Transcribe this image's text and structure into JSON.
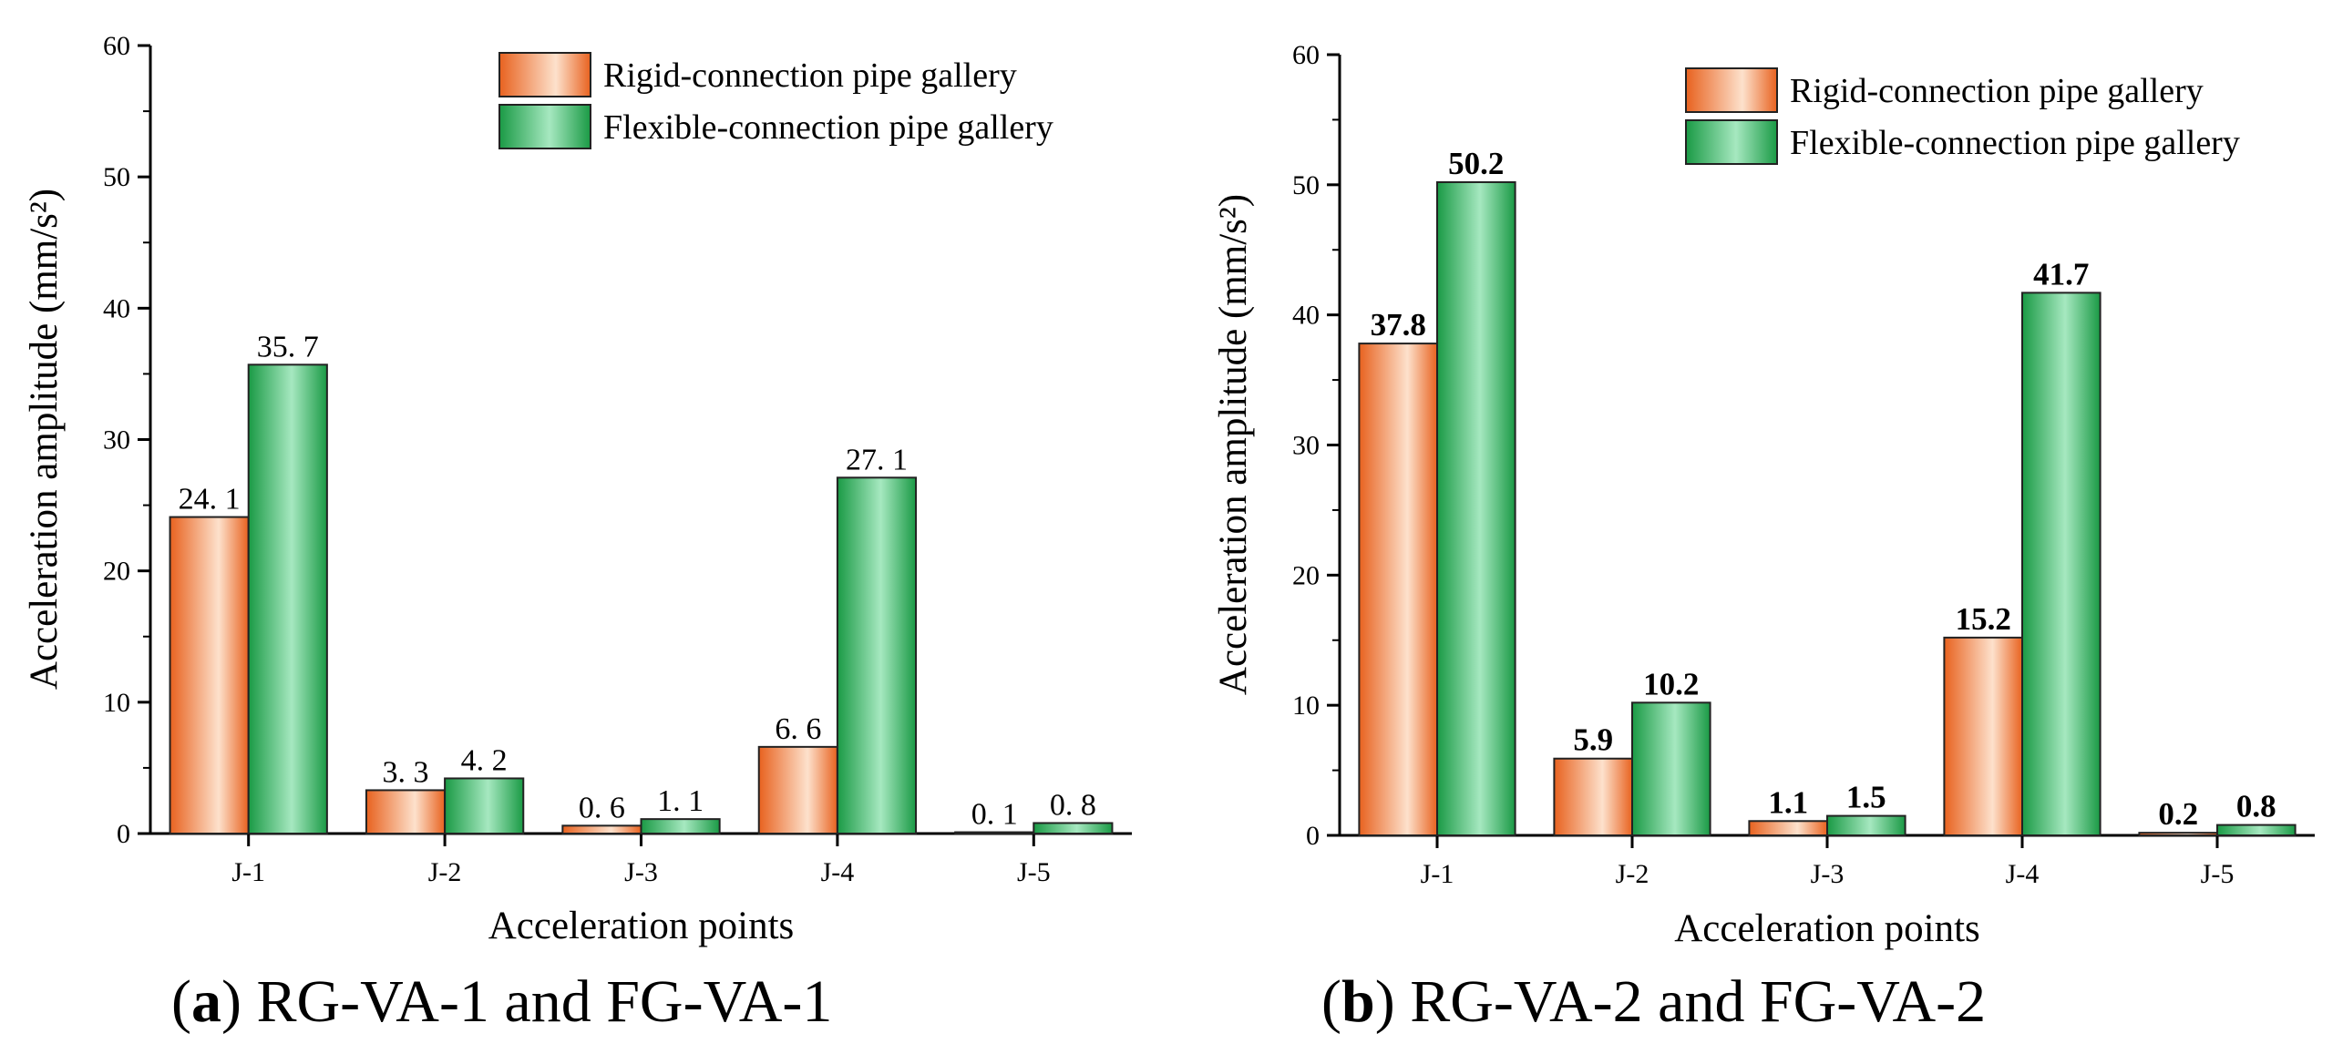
{
  "colors": {
    "rigid_dark": "#e8621f",
    "rigid_light": "#fde1cc",
    "flex_dark": "#1a9a45",
    "flex_light": "#a6e8c0",
    "bar_border": "#222222"
  },
  "chart_data": [
    {
      "type": "bar",
      "panel": "a",
      "categories": [
        "J-1",
        "J-2",
        "J-3",
        "J-4",
        "J-5"
      ],
      "series": [
        {
          "name": "Rigid-connection pipe gallery",
          "values": [
            24.1,
            3.3,
            0.6,
            6.6,
            0.1
          ],
          "labels": [
            "24. 1",
            "3. 3",
            "0. 6",
            "6. 6",
            "0. 1"
          ]
        },
        {
          "name": "Flexible-connection pipe gallery",
          "values": [
            35.7,
            4.2,
            1.1,
            27.1,
            0.8
          ],
          "labels": [
            "35. 7",
            "4. 2",
            "1. 1",
            "27. 1",
            "0. 8"
          ]
        }
      ],
      "xlabel": "Acceleration points",
      "ylabel": "Acceleration amplitude (mm/s²)",
      "ylim": [
        0,
        60
      ],
      "yticks": [
        0,
        10,
        20,
        30,
        40,
        50,
        60
      ],
      "legend_position": "top-right",
      "label_style": "spaced",
      "caption": {
        "letter": "(a)",
        "text": " RG-VA-1 and FG-VA-1"
      }
    },
    {
      "type": "bar",
      "panel": "b",
      "categories": [
        "J-1",
        "J-2",
        "J-3",
        "J-4",
        "J-5"
      ],
      "series": [
        {
          "name": "Rigid-connection pipe gallery",
          "values": [
            37.8,
            5.9,
            1.1,
            15.2,
            0.2
          ],
          "labels": [
            "37.8",
            "5.9",
            "1.1",
            "15.2",
            "0.2"
          ]
        },
        {
          "name": "Flexible-connection pipe gallery",
          "values": [
            50.2,
            10.2,
            1.5,
            41.7,
            0.8
          ],
          "labels": [
            "50.2",
            "10.2",
            "1.5",
            "41.7",
            "0.8"
          ]
        }
      ],
      "xlabel": "Acceleration points",
      "ylabel": "Acceleration amplitude (mm/s²)",
      "ylim": [
        0,
        60
      ],
      "yticks": [
        0,
        10,
        20,
        30,
        40,
        50,
        60
      ],
      "legend_position": "top-right",
      "label_style": "bold",
      "caption": {
        "letter": "(b)",
        "text": " RG-VA-2 and FG-VA-2"
      }
    }
  ]
}
